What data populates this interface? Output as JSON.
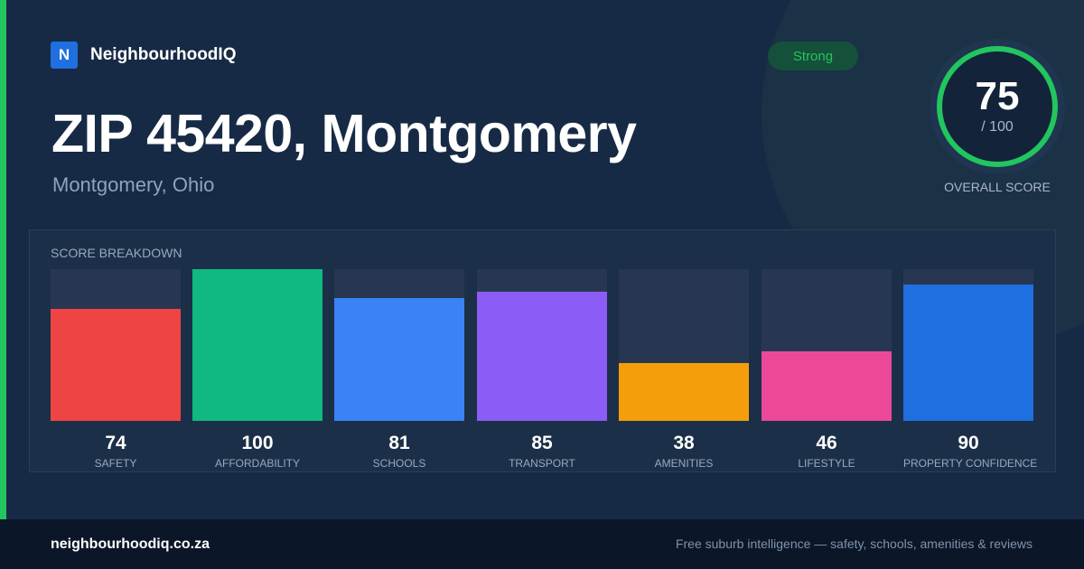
{
  "brand": {
    "logo_letter": "N",
    "name": "NeighbourhoodIQ"
  },
  "header": {
    "title": "ZIP 45420, Montgomery",
    "subtitle": "Montgomery, Ohio"
  },
  "badge": {
    "label": "Strong",
    "color": "#22c55e"
  },
  "overall": {
    "score": "75",
    "max_label": "/ 100",
    "label": "OVERALL SCORE",
    "fraction": 0.75
  },
  "breakdown": {
    "title": "SCORE BREAKDOWN",
    "items": [
      {
        "value": "74",
        "label": "SAFETY",
        "color": "#ef4444"
      },
      {
        "value": "100",
        "label": "AFFORDABILITY",
        "color": "#10b981"
      },
      {
        "value": "81",
        "label": "SCHOOLS",
        "color": "#3b82f6"
      },
      {
        "value": "85",
        "label": "TRANSPORT",
        "color": "#8b5cf6"
      },
      {
        "value": "38",
        "label": "AMENITIES",
        "color": "#f59e0b"
      },
      {
        "value": "46",
        "label": "LIFESTYLE",
        "color": "#ec4899"
      },
      {
        "value": "90",
        "label": "PROPERTY CONFIDENCE",
        "color": "#1f6fe0"
      }
    ]
  },
  "footer": {
    "url": "neighbourhoodiq.co.za",
    "tagline": "Free suburb intelligence — safety, schools, amenities & reviews"
  }
}
